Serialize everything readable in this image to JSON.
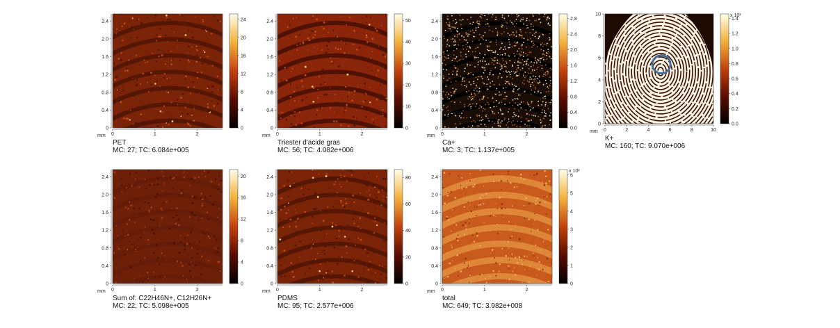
{
  "panels": [
    {
      "id": "pet",
      "unit": "mm",
      "x_ticks": [
        "0",
        "1",
        "2"
      ],
      "y_ticks": [
        "0",
        "0.4",
        "0.8",
        "1.2",
        "1.6",
        "2.0",
        "2.4"
      ],
      "colorbar_ticks": [
        "0",
        "4",
        "8",
        "12",
        "16",
        "20",
        "24"
      ],
      "name": "PET",
      "stats": "MC:    27; TC: 6.084e+005",
      "style": "dark"
    },
    {
      "id": "triester",
      "unit": "mm",
      "x_ticks": [
        "0",
        "1",
        "2"
      ],
      "y_ticks": [
        "0",
        "0.4",
        "0.8",
        "1.2",
        "1.6",
        "2.0",
        "2.4"
      ],
      "colorbar_ticks": [
        "0",
        "10",
        "20",
        "30",
        "40",
        "50"
      ],
      "name": "Triester d'acide gras",
      "stats": "MC:    56; TC: 4.082e+006",
      "style": "bright"
    },
    {
      "id": "ca",
      "unit": "mm",
      "x_ticks": [
        "0",
        "1",
        "2"
      ],
      "y_ticks": [
        "0",
        "0.4",
        "0.8",
        "1.2",
        "1.6",
        "2.0",
        "2.4"
      ],
      "colorbar_ticks": [
        "0.0",
        "0.4",
        "0.8",
        "1.2",
        "1.6",
        "2.0",
        "2.4",
        "2.8"
      ],
      "name": "Ca+",
      "stats": "MC:     3; TC: 1.137e+005",
      "style": "speckle"
    },
    {
      "id": "k",
      "unit": "mm",
      "x_ticks": [
        "0",
        "2",
        "4",
        "6",
        "8",
        "10"
      ],
      "y_ticks": [
        "0",
        "2",
        "4",
        "6",
        "8",
        "10"
      ],
      "colorbar_ticks": [
        "0.0",
        "0.2",
        "0.4",
        "0.6",
        "0.8",
        "1.0",
        "1.2",
        "1.4"
      ],
      "colorbar_exp": "x 10²",
      "name": "K+",
      "stats": "MC:   160; TC: 9.070e+006",
      "style": "fingerprint"
    },
    {
      "id": "sum",
      "unit": "mm",
      "x_ticks": [
        "0",
        "1",
        "2"
      ],
      "y_ticks": [
        "0",
        "0.4",
        "0.8",
        "1.2",
        "1.6",
        "2.0",
        "2.4"
      ],
      "colorbar_ticks": [
        "0",
        "4",
        "8",
        "12",
        "16",
        "20"
      ],
      "name": "Sum of: C22H46N+, C12H26N+",
      "stats": "MC:    22; TC: 5.098e+005",
      "style": "faint"
    },
    {
      "id": "pdms",
      "unit": "mm",
      "x_ticks": [
        "0",
        "1",
        "2"
      ],
      "y_ticks": [
        "0",
        "0.4",
        "0.8",
        "1.2",
        "1.6",
        "2.0",
        "2.4"
      ],
      "colorbar_ticks": [
        "0",
        "20",
        "40",
        "60",
        "80"
      ],
      "name": "PDMS",
      "stats": "MC:    95; TC: 2.577e+006",
      "style": "dark"
    },
    {
      "id": "total",
      "unit": "mm",
      "x_ticks": [
        "0",
        "1",
        "2"
      ],
      "y_ticks": [
        "0",
        "0.4",
        "0.8",
        "1.2",
        "1.6",
        "2.0",
        "2.4"
      ],
      "colorbar_ticks": [
        "0",
        "1",
        "2",
        "3",
        "4",
        "5",
        "6"
      ],
      "colorbar_exp": "x 10²",
      "name": "total",
      "stats": "MC:   649; TC: 3.982e+008",
      "style": "total"
    }
  ],
  "colors": {
    "ridge_dark": "#5a1a06",
    "ridge_mid": "#b8400f",
    "highlight": "#f3d27a",
    "circle": "#4a6d94"
  }
}
